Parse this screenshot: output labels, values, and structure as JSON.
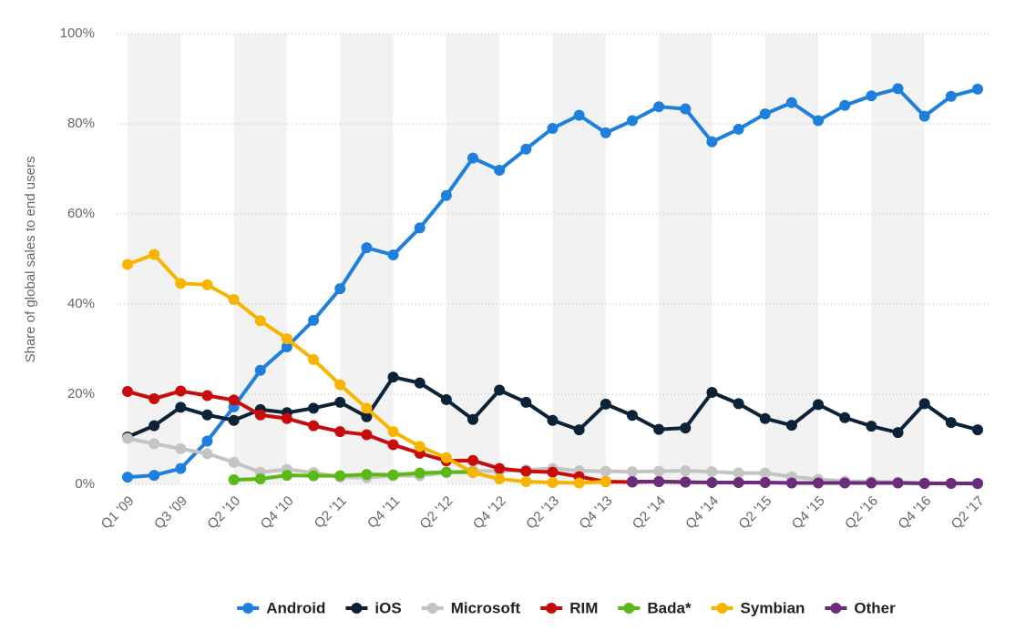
{
  "chart_data": {
    "type": "line",
    "y_label": "Share of global sales to end users",
    "categories": [
      "Q1 '09",
      null,
      "Q3 '09",
      null,
      "Q2 '10",
      null,
      "Q4 '10",
      null,
      "Q2 '11",
      null,
      "Q4 '11",
      null,
      "Q2 '12",
      null,
      "Q4 '12",
      null,
      "Q2 '13",
      null,
      "Q4 '13",
      null,
      "Q2 '14",
      null,
      "Q4 '14",
      null,
      "Q2 '15",
      null,
      "Q4 '15",
      null,
      "Q2 '16",
      null,
      "Q4 '16",
      null,
      "Q2 '17"
    ],
    "ylim": [
      0,
      100
    ],
    "yticks": [
      {
        "value": 0,
        "label": "0%"
      },
      {
        "value": 20,
        "label": "20%"
      },
      {
        "value": 40,
        "label": "40%"
      },
      {
        "value": 60,
        "label": "60%"
      },
      {
        "value": 80,
        "label": "80%"
      },
      {
        "value": 100,
        "label": "100%"
      }
    ],
    "grid": true,
    "legend": "bottom",
    "series": [
      {
        "name": "Android",
        "color": "#1f7fdc",
        "values": [
          1.6,
          2.0,
          3.5,
          9.6,
          17.2,
          25.3,
          30.5,
          36.4,
          43.4,
          52.5,
          50.9,
          56.9,
          64.1,
          72.4,
          69.7,
          74.4,
          79.0,
          81.9,
          78.0,
          80.7,
          83.8,
          83.3,
          76.0,
          78.8,
          82.2,
          84.7,
          80.7,
          84.1,
          86.2,
          87.8,
          81.7,
          86.1,
          87.7
        ]
      },
      {
        "name": "iOS",
        "color": "#0c2237",
        "values": [
          10.5,
          13.0,
          17.1,
          15.4,
          14.2,
          16.6,
          15.9,
          16.9,
          18.2,
          15.0,
          23.8,
          22.5,
          18.8,
          14.4,
          20.9,
          18.2,
          14.2,
          12.1,
          17.8,
          15.3,
          12.2,
          12.5,
          20.4,
          17.9,
          14.6,
          13.1,
          17.7,
          14.8,
          12.9,
          11.5,
          17.9,
          13.7,
          12.1
        ]
      },
      {
        "name": "Microsoft",
        "color": "#c4c4c4",
        "values": [
          10.2,
          9.0,
          7.9,
          6.8,
          4.9,
          2.7,
          3.3,
          2.6,
          1.6,
          1.5,
          1.9,
          1.9,
          2.6,
          3.0,
          2.9,
          3.2,
          3.5,
          3.0,
          2.9,
          2.8,
          2.9,
          3.0,
          2.8,
          2.5,
          2.5,
          1.7,
          1.1,
          0.7,
          0.6,
          0.5,
          0.3,
          0.2,
          0.1
        ]
      },
      {
        "name": "RIM",
        "color": "#c80b0b",
        "values": [
          20.6,
          19.0,
          20.7,
          19.7,
          18.7,
          15.4,
          14.6,
          13.0,
          11.7,
          11.0,
          8.8,
          6.9,
          5.2,
          5.3,
          3.5,
          2.9,
          2.7,
          1.7,
          0.6,
          0.5,
          0.6,
          0.5,
          null,
          null,
          null,
          null,
          null,
          null,
          null,
          null,
          null,
          null,
          null
        ]
      },
      {
        "name": "Bada*",
        "color": "#5cb814",
        "values": [
          null,
          null,
          null,
          null,
          1.0,
          1.2,
          2.0,
          1.9,
          1.9,
          2.2,
          2.1,
          2.5,
          2.7,
          2.7,
          null,
          null,
          null,
          null,
          null,
          null,
          null,
          null,
          null,
          null,
          null,
          null,
          null,
          null,
          null,
          null,
          null,
          null,
          null
        ]
      },
      {
        "name": "Symbian",
        "color": "#f7b500",
        "values": [
          48.8,
          51.0,
          44.6,
          44.3,
          41.0,
          36.3,
          32.3,
          27.7,
          22.1,
          16.9,
          11.7,
          8.4,
          5.9,
          2.6,
          1.2,
          0.6,
          0.4,
          0.3,
          0.6,
          null,
          null,
          null,
          null,
          null,
          null,
          null,
          null,
          null,
          null,
          null,
          null,
          null,
          null
        ]
      },
      {
        "name": "Other",
        "color": "#6b2c7c",
        "values": [
          null,
          null,
          null,
          null,
          null,
          null,
          null,
          null,
          null,
          null,
          null,
          null,
          null,
          null,
          null,
          null,
          null,
          null,
          null,
          0.6,
          0.6,
          0.5,
          0.4,
          0.4,
          0.4,
          0.3,
          0.3,
          0.3,
          0.3,
          0.3,
          0.2,
          0.2,
          0.2
        ]
      }
    ]
  }
}
